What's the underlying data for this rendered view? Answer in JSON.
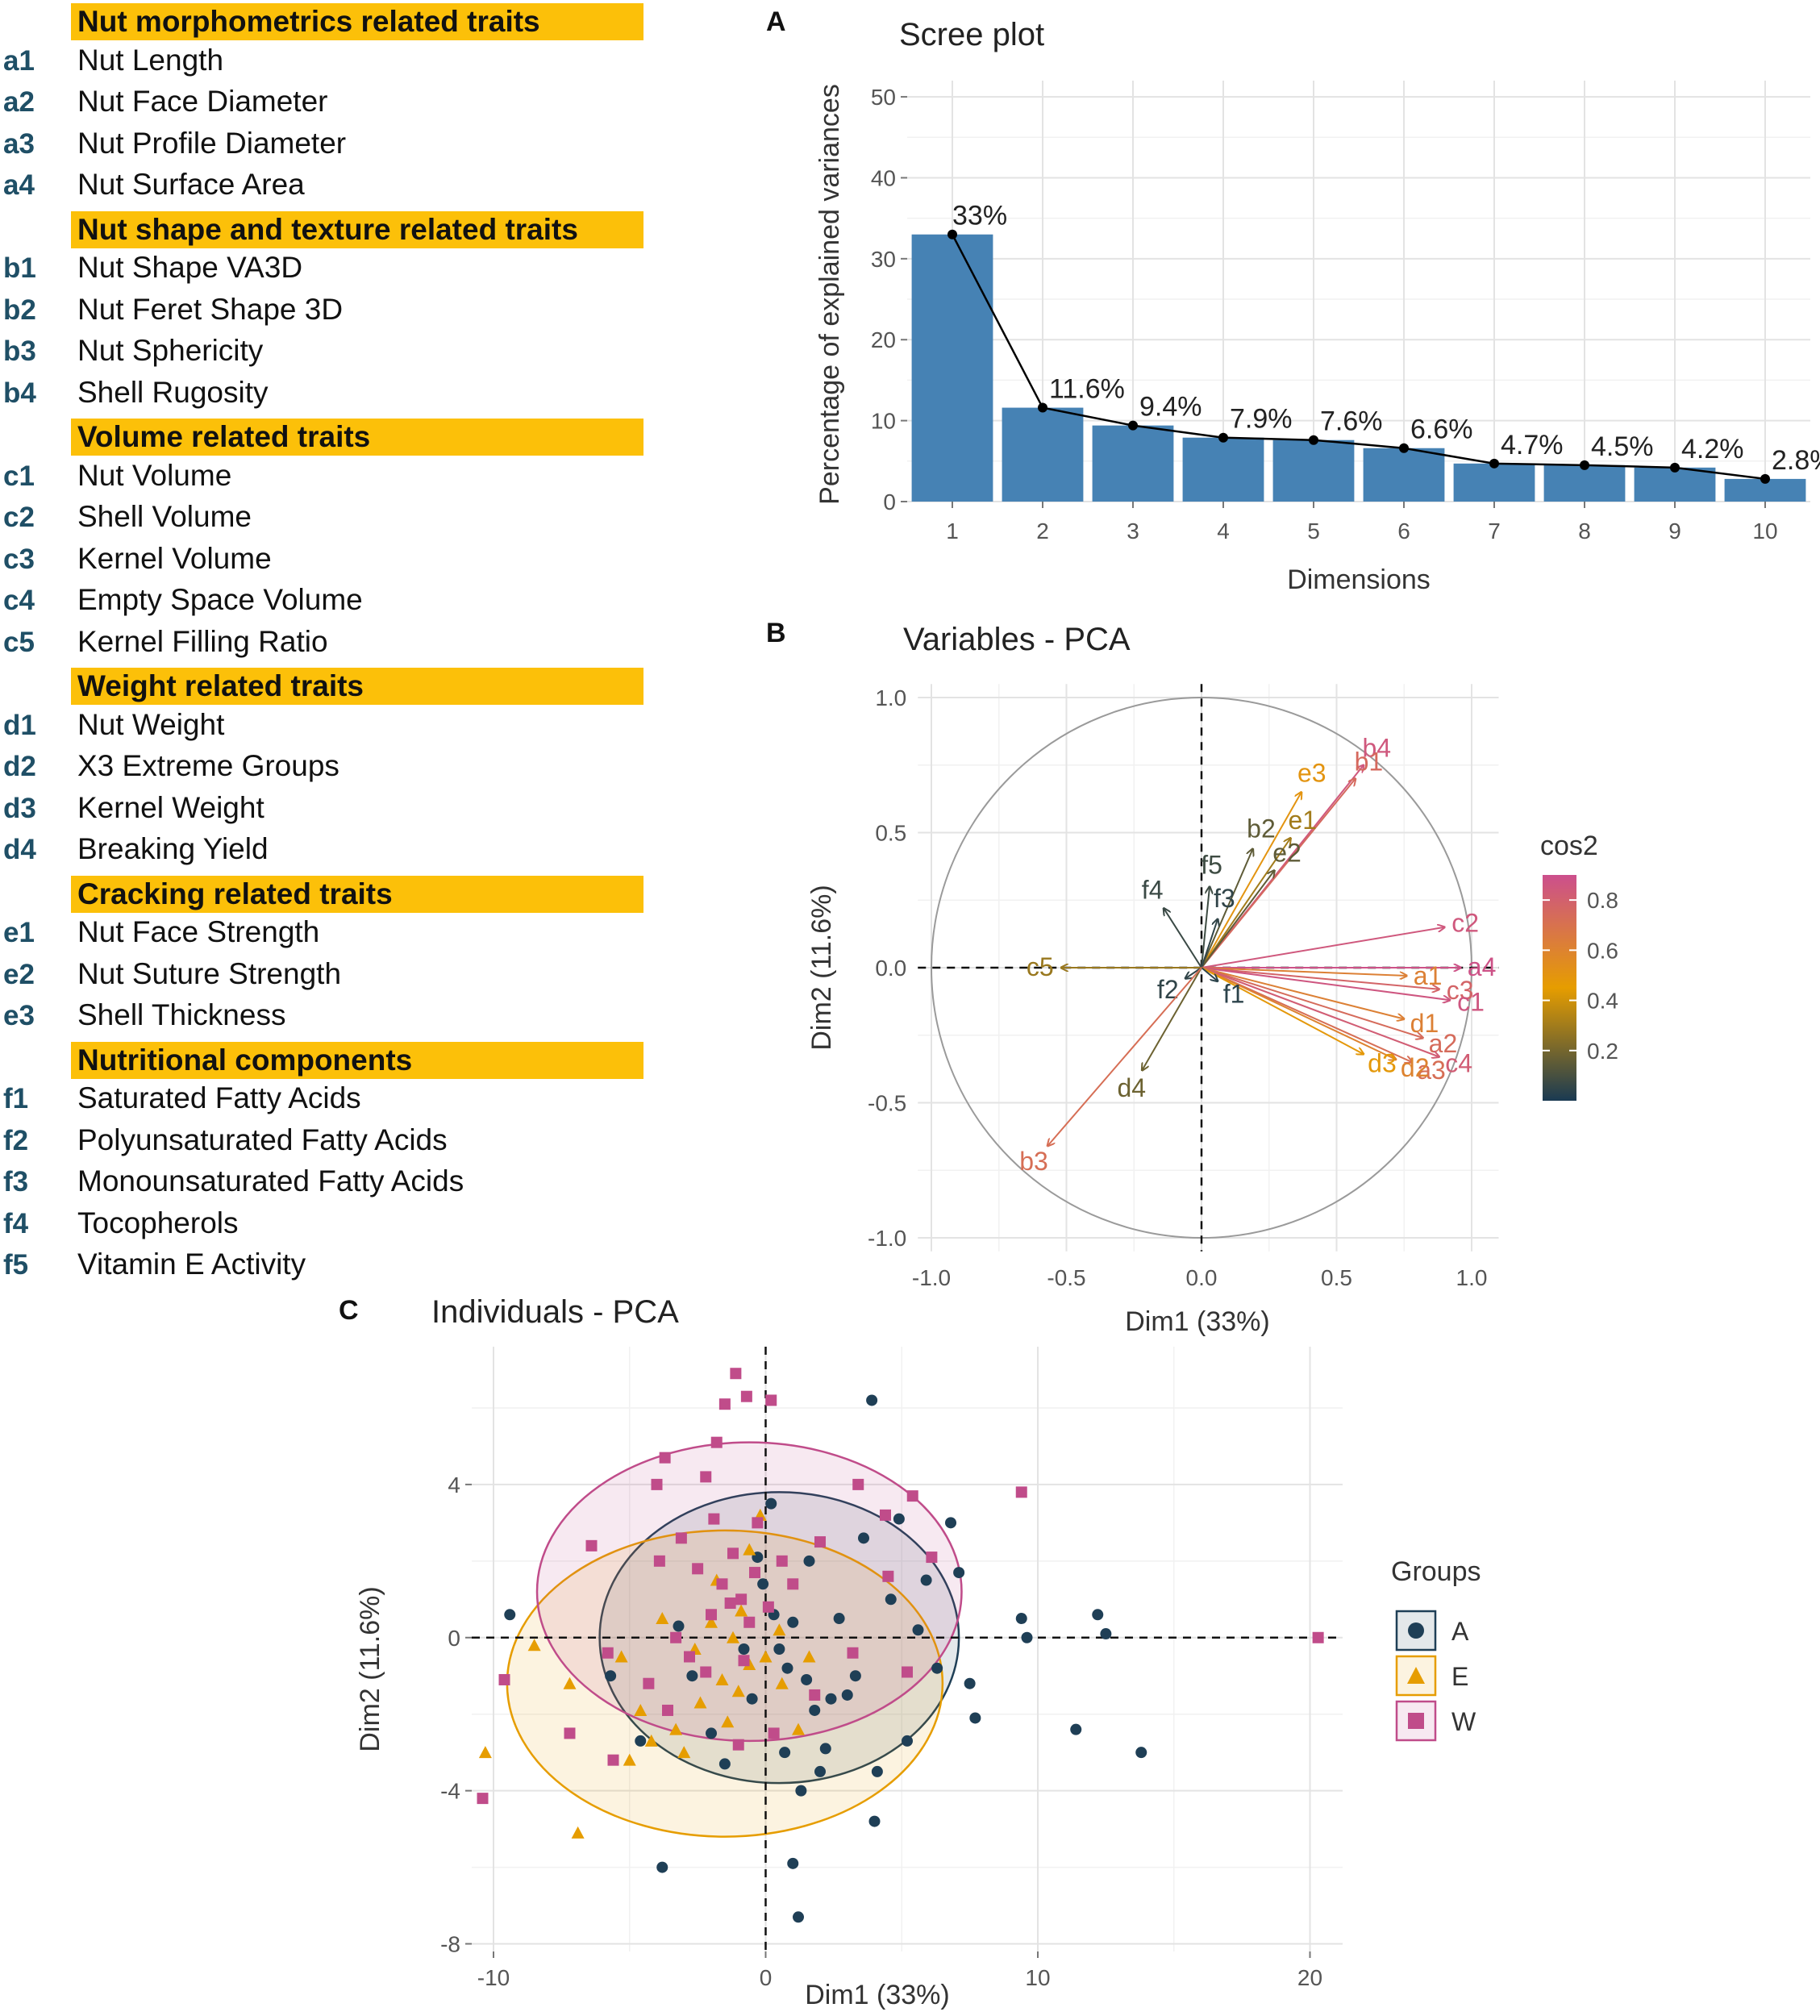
{
  "trait_legend": [
    {
      "header": "Nut morphometrics related traits",
      "items": [
        {
          "code": "a1",
          "name": "Nut Length"
        },
        {
          "code": "a2",
          "name": "Nut Face Diameter"
        },
        {
          "code": "a3",
          "name": "Nut Profile Diameter"
        },
        {
          "code": "a4",
          "name": "Nut Surface Area"
        }
      ]
    },
    {
      "header": "Nut shape and texture related traits",
      "items": [
        {
          "code": "b1",
          "name": "Nut Shape VA3D"
        },
        {
          "code": "b2",
          "name": "Nut Feret Shape 3D"
        },
        {
          "code": "b3",
          "name": "Nut Sphericity"
        },
        {
          "code": "b4",
          "name": "Shell Rugosity"
        }
      ]
    },
    {
      "header": "Volume related traits",
      "items": [
        {
          "code": "c1",
          "name": "Nut Volume"
        },
        {
          "code": "c2",
          "name": "Shell Volume"
        },
        {
          "code": "c3",
          "name": "Kernel Volume"
        },
        {
          "code": "c4",
          "name": "Empty Space Volume"
        },
        {
          "code": "c5",
          "name": "Kernel Filling Ratio"
        }
      ]
    },
    {
      "header": "Weight related traits",
      "items": [
        {
          "code": "d1",
          "name": "Nut Weight"
        },
        {
          "code": "d2",
          "name": "X3 Extreme Groups"
        },
        {
          "code": "d3",
          "name": "Kernel Weight"
        },
        {
          "code": "d4",
          "name": "Breaking Yield"
        }
      ]
    },
    {
      "header": "Cracking related traits",
      "items": [
        {
          "code": "e1",
          "name": "Nut Face Strength"
        },
        {
          "code": "e2",
          "name": "Nut Suture Strength"
        },
        {
          "code": "e3",
          "name": "Shell Thickness"
        }
      ]
    },
    {
      "header": "Nutritional components",
      "items": [
        {
          "code": "f1",
          "name": "Saturated Fatty Acids"
        },
        {
          "code": "f2",
          "name": "Polyunsaturated Fatty Acids"
        },
        {
          "code": "f3",
          "name": "Monounsaturated Fatty Acids"
        },
        {
          "code": "f4",
          "name": "Tocopherols"
        },
        {
          "code": "f5",
          "name": "Vitamin E Activity"
        }
      ]
    }
  ],
  "chart_data": [
    {
      "panel": "A",
      "type": "bar",
      "title": "Scree plot",
      "xlabel": "Dimensions",
      "ylabel": "Percentage of explained variances",
      "categories": [
        "1",
        "2",
        "3",
        "4",
        "5",
        "6",
        "7",
        "8",
        "9",
        "10"
      ],
      "values": [
        33,
        11.6,
        9.4,
        7.9,
        7.6,
        6.6,
        4.7,
        4.5,
        4.2,
        2.8
      ],
      "data_labels": [
        "33%",
        "11.6%",
        "9.4%",
        "7.9%",
        "7.6%",
        "6.6%",
        "4.7%",
        "4.5%",
        "4.2%",
        "2.8%"
      ],
      "ylim": [
        0,
        52
      ],
      "yticks": [
        0,
        10,
        20,
        30,
        40,
        50
      ],
      "bar_color": "#4682b4",
      "line_color": "#000000",
      "grid": true
    },
    {
      "panel": "B",
      "type": "scatter",
      "title": "Variables - PCA",
      "xlabel": "Dim1 (33%)",
      "ylabel": "Dim2 (11.6%)",
      "xlim": [
        -1.0,
        1.0
      ],
      "ylim": [
        -1.0,
        1.0
      ],
      "xticks": [
        "-1.0",
        "-0.5",
        "0.0",
        "0.5",
        "1.0"
      ],
      "yticks": [
        "-1.0",
        "-0.5",
        "0.0",
        "0.5",
        "1.0"
      ],
      "color_scale_title": "cos2",
      "color_scale_ticks": [
        "0.2",
        "0.4",
        "0.6",
        "0.8"
      ],
      "color_scale_colors": [
        "#1a3a52",
        "#e69d00",
        "#cc4f8d"
      ],
      "vectors": [
        {
          "label": "b4",
          "x": 0.6,
          "y": 0.75,
          "cos2": 0.85
        },
        {
          "label": "b1",
          "x": 0.57,
          "y": 0.7,
          "cos2": 0.75
        },
        {
          "label": "e3",
          "x": 0.37,
          "y": 0.65,
          "cos2": 0.5
        },
        {
          "label": "b2",
          "x": 0.19,
          "y": 0.44,
          "cos2": 0.15
        },
        {
          "label": "e1",
          "x": 0.33,
          "y": 0.48,
          "cos2": 0.3
        },
        {
          "label": "e2",
          "x": 0.27,
          "y": 0.36,
          "cos2": 0.15
        },
        {
          "label": "f5",
          "x": 0.03,
          "y": 0.3,
          "cos2": 0.08
        },
        {
          "label": "f4",
          "x": -0.14,
          "y": 0.22,
          "cos2": 0.07
        },
        {
          "label": "f3",
          "x": 0.06,
          "y": 0.18,
          "cos2": 0.05
        },
        {
          "label": "c2",
          "x": 0.9,
          "y": 0.15,
          "cos2": 0.85
        },
        {
          "label": "a4",
          "x": 0.96,
          "y": 0.0,
          "cos2": 0.88
        },
        {
          "label": "a1",
          "x": 0.76,
          "y": -0.03,
          "cos2": 0.62
        },
        {
          "label": "c3",
          "x": 0.88,
          "y": -0.08,
          "cos2": 0.78
        },
        {
          "label": "c1",
          "x": 0.92,
          "y": -0.12,
          "cos2": 0.86
        },
        {
          "label": "d1",
          "x": 0.75,
          "y": -0.19,
          "cos2": 0.62
        },
        {
          "label": "a2",
          "x": 0.82,
          "y": -0.26,
          "cos2": 0.74
        },
        {
          "label": "c4",
          "x": 0.88,
          "y": -0.33,
          "cos2": 0.82
        },
        {
          "label": "a3",
          "x": 0.78,
          "y": -0.35,
          "cos2": 0.72
        },
        {
          "label": "d2",
          "x": 0.72,
          "y": -0.34,
          "cos2": 0.6
        },
        {
          "label": "d3",
          "x": 0.6,
          "y": -0.32,
          "cos2": 0.48
        },
        {
          "label": "c5",
          "x": -0.52,
          "y": 0.0,
          "cos2": 0.28
        },
        {
          "label": "f2",
          "x": -0.06,
          "y": -0.04,
          "cos2": 0.05
        },
        {
          "label": "f1",
          "x": 0.06,
          "y": -0.05,
          "cos2": 0.04
        },
        {
          "label": "d4",
          "x": -0.22,
          "y": -0.38,
          "cos2": 0.18
        },
        {
          "label": "b3",
          "x": -0.57,
          "y": -0.66,
          "cos2": 0.72
        }
      ]
    },
    {
      "panel": "C",
      "type": "scatter",
      "title": "Individuals - PCA",
      "xlabel": "Dim1 (33%)",
      "ylabel": "Dim2 (11.6%)",
      "xlim": [
        -10.8,
        21.2
      ],
      "ylim": [
        -8.2,
        7.6
      ],
      "xticks": [
        -10,
        0,
        10,
        20
      ],
      "yticks": [
        -8,
        -4,
        0,
        4
      ],
      "legend_title": "Groups",
      "legend_position": "right",
      "groups": [
        {
          "name": "A",
          "color": "#1f3f56",
          "shape": "circle",
          "ellipse": {
            "cx": 0.5,
            "cy": 0.0,
            "rx": 6.6,
            "ry": 3.8
          }
        },
        {
          "name": "E",
          "color": "#e69d00",
          "shape": "triangle",
          "ellipse": {
            "cx": -1.5,
            "cy": -1.2,
            "rx": 8.0,
            "ry": 4.0
          }
        },
        {
          "name": "W",
          "color": "#c04c8a",
          "shape": "square",
          "ellipse": {
            "cx": -0.6,
            "cy": 1.2,
            "rx": 7.8,
            "ry": 3.9
          }
        }
      ],
      "points": {
        "A": [
          [
            3.9,
            6.2
          ],
          [
            6.8,
            3.0
          ],
          [
            7.1,
            1.7
          ],
          [
            7.5,
            -1.2
          ],
          [
            9.4,
            0.5
          ],
          [
            9.6,
            0.0
          ],
          [
            12.2,
            0.6
          ],
          [
            12.5,
            0.1
          ],
          [
            11.4,
            -2.4
          ],
          [
            13.8,
            -3.0
          ],
          [
            7.7,
            -2.1
          ],
          [
            4.0,
            -4.8
          ],
          [
            1.0,
            -5.9
          ],
          [
            1.2,
            -7.3
          ],
          [
            -3.8,
            -6.0
          ],
          [
            -9.4,
            0.6
          ],
          [
            -5.7,
            -1.0
          ],
          [
            -4.6,
            -2.7
          ],
          [
            -2.0,
            -2.5
          ],
          [
            -0.5,
            -1.6
          ],
          [
            0.8,
            -0.8
          ],
          [
            1.5,
            -1.1
          ],
          [
            2.7,
            0.5
          ],
          [
            3.6,
            2.6
          ],
          [
            4.9,
            3.1
          ],
          [
            5.2,
            -2.7
          ],
          [
            5.6,
            0.2
          ],
          [
            6.3,
            -0.8
          ],
          [
            2.0,
            -3.5
          ],
          [
            -0.3,
            2.1
          ],
          [
            0.3,
            0.6
          ],
          [
            0.5,
            -0.3
          ],
          [
            1.0,
            0.4
          ],
          [
            -0.8,
            -0.3
          ],
          [
            1.8,
            -1.9
          ],
          [
            2.4,
            -1.6
          ],
          [
            3.3,
            -1.0
          ],
          [
            4.1,
            -3.5
          ],
          [
            -1.5,
            -3.3
          ],
          [
            -2.7,
            -1.0
          ],
          [
            0.2,
            3.5
          ],
          [
            -0.1,
            1.4
          ],
          [
            1.6,
            2.0
          ],
          [
            2.2,
            -2.9
          ],
          [
            3.0,
            -1.5
          ],
          [
            4.6,
            1.0
          ],
          [
            0.7,
            -3.0
          ],
          [
            -3.2,
            0.3
          ],
          [
            5.9,
            1.5
          ],
          [
            1.3,
            -4.0
          ]
        ],
        "E": [
          [
            -8.5,
            -0.2
          ],
          [
            -7.2,
            -1.2
          ],
          [
            -10.3,
            -3.0
          ],
          [
            -6.9,
            -5.1
          ],
          [
            -5.0,
            -3.2
          ],
          [
            -4.2,
            -2.7
          ],
          [
            -3.0,
            -3.0
          ],
          [
            -2.4,
            -1.7
          ],
          [
            -1.6,
            -1.1
          ],
          [
            -1.0,
            -1.4
          ],
          [
            -0.6,
            -0.7
          ],
          [
            0.0,
            -0.5
          ],
          [
            -0.2,
            3.2
          ],
          [
            -0.6,
            2.3
          ],
          [
            -1.8,
            1.5
          ],
          [
            -3.8,
            0.5
          ],
          [
            1.2,
            -2.4
          ],
          [
            0.6,
            -1.2
          ],
          [
            -2.0,
            0.4
          ],
          [
            -1.2,
            0.0
          ],
          [
            -4.6,
            -1.9
          ],
          [
            0.5,
            0.2
          ],
          [
            -3.3,
            -2.4
          ],
          [
            -0.9,
            0.7
          ],
          [
            -2.6,
            -0.3
          ],
          [
            1.6,
            -0.5
          ],
          [
            -5.3,
            -0.5
          ],
          [
            -1.4,
            -2.2
          ]
        ],
        "W": [
          [
            -1.1,
            6.9
          ],
          [
            -1.5,
            6.1
          ],
          [
            -0.7,
            6.3
          ],
          [
            0.2,
            6.2
          ],
          [
            -1.8,
            5.1
          ],
          [
            -3.7,
            4.7
          ],
          [
            -2.2,
            4.2
          ],
          [
            -6.4,
            2.4
          ],
          [
            -4.0,
            4.0
          ],
          [
            -3.1,
            2.6
          ],
          [
            -2.5,
            1.8
          ],
          [
            -1.6,
            1.4
          ],
          [
            -0.9,
            1.0
          ],
          [
            -0.4,
            1.7
          ],
          [
            0.1,
            0.8
          ],
          [
            -0.6,
            0.4
          ],
          [
            -1.3,
            0.9
          ],
          [
            -2.0,
            0.6
          ],
          [
            -3.3,
            0.0
          ],
          [
            -4.3,
            -1.2
          ],
          [
            -5.8,
            -0.4
          ],
          [
            -7.2,
            -2.5
          ],
          [
            -9.6,
            -1.1
          ],
          [
            -10.4,
            -4.2
          ],
          [
            -5.6,
            -3.2
          ],
          [
            -3.6,
            -1.9
          ],
          [
            -2.2,
            -0.9
          ],
          [
            -1.0,
            -2.8
          ],
          [
            0.3,
            -2.5
          ],
          [
            1.8,
            -1.5
          ],
          [
            3.2,
            -0.4
          ],
          [
            4.5,
            1.6
          ],
          [
            2.0,
            2.5
          ],
          [
            3.4,
            4.0
          ],
          [
            4.4,
            3.2
          ],
          [
            5.4,
            3.7
          ],
          [
            6.1,
            2.1
          ],
          [
            5.2,
            -0.9
          ],
          [
            9.4,
            3.8
          ],
          [
            20.3,
            0.0
          ],
          [
            -0.3,
            3.0
          ],
          [
            -1.2,
            2.2
          ],
          [
            0.6,
            2.0
          ],
          [
            -2.8,
            -0.5
          ],
          [
            -0.8,
            -0.6
          ],
          [
            -1.9,
            3.1
          ],
          [
            1.0,
            1.4
          ],
          [
            -3.9,
            2.0
          ]
        ]
      }
    }
  ]
}
